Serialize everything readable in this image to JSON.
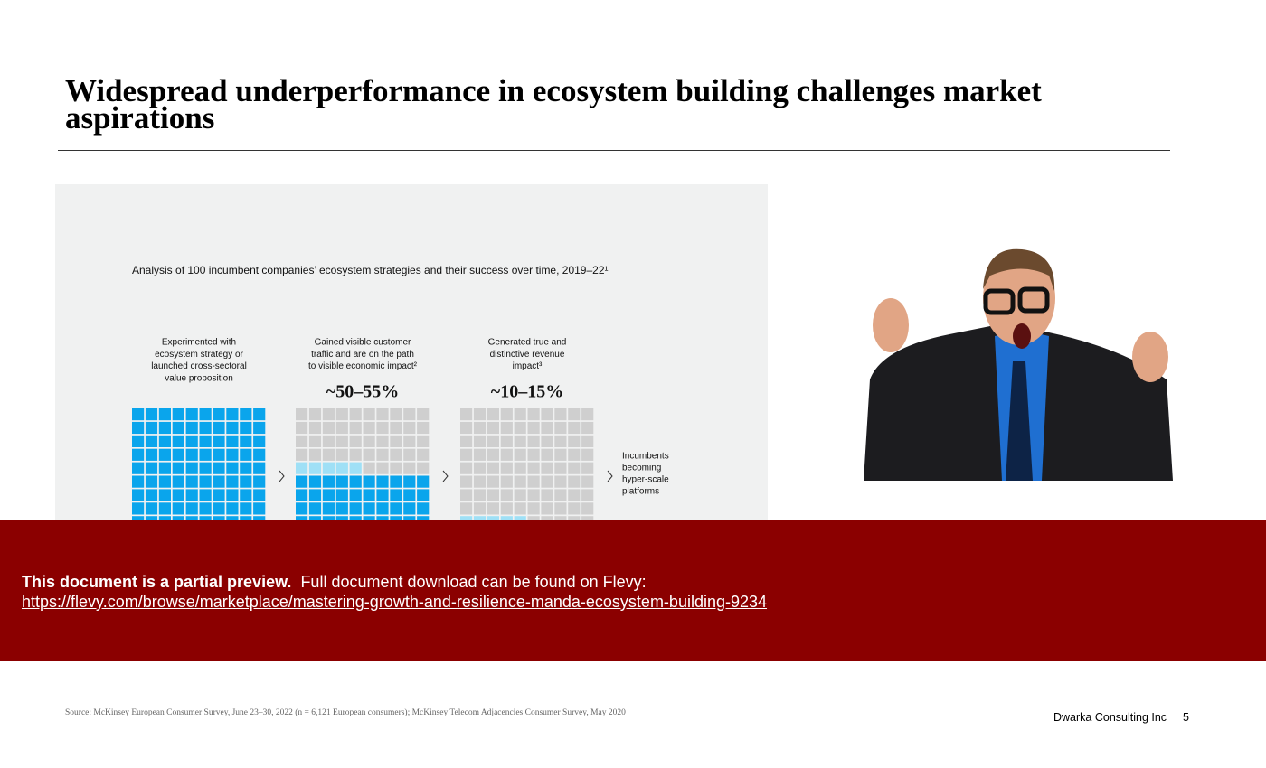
{
  "header": {
    "title": "Widespread underperformance in ecosystem building challenges market aspirations"
  },
  "exhibit": {
    "subtitle": "Analysis of 100 incumbent companies’ ecosystem strategies and their success over time, 2019–22¹",
    "stages": [
      {
        "label": [
          "Experimented  with",
          "ecosystem strategy or",
          "launched  cross-sectoral",
          "value proposition"
        ]
      },
      {
        "label": [
          "Gained visible customer",
          "traffic and are on the path",
          "to visible economic impact²"
        ],
        "share": "~50–55%"
      },
      {
        "label": [
          "Generated true and",
          "distinctive  revenue",
          "impact³"
        ],
        "share": "~10–15%"
      }
    ],
    "end_label": [
      "Incumbents",
      "becoming",
      "hyper-scale",
      "platforms"
    ]
  },
  "banner": {
    "bold": "This document is a partial preview.",
    "text": "Full document download can be found on Flevy:",
    "link": "https://flevy.com/browse/marketplace/mastering-growth-and-resilience-manda-ecosystem-building-9234"
  },
  "footer": {
    "source": "Source: McKinsey European Consumer Survey, June 23–30, 2022 (n = 6,121 European consumers); McKinsey Telecom Adjacencies Consumer Survey, May 2020",
    "company": "Dwarka Consulting Inc",
    "page": "5"
  }
}
